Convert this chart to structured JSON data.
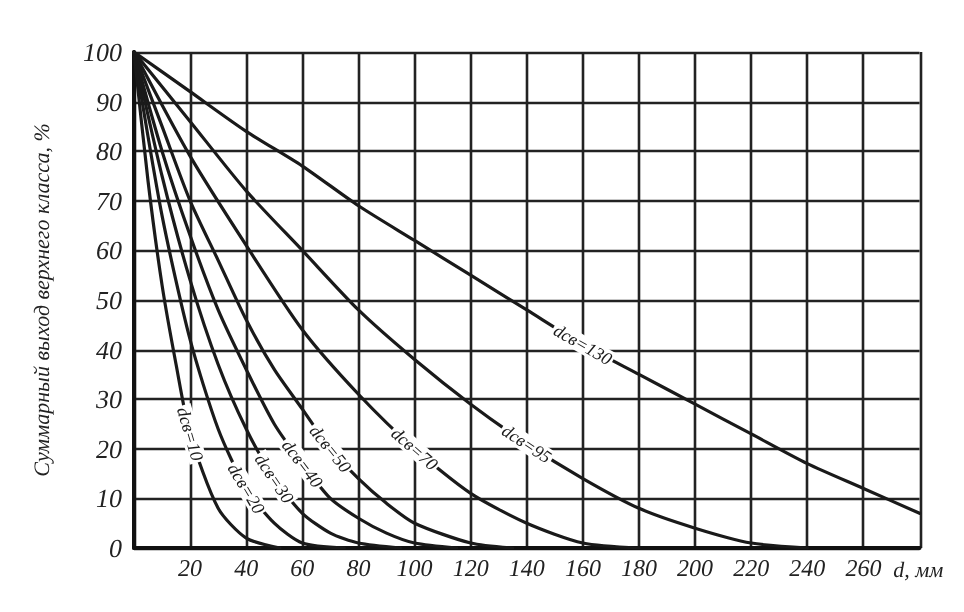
{
  "chart_data": {
    "type": "line",
    "xlabel": "d, мм",
    "ylabel": "Суммарный выход верхнего класса, %",
    "xlim": [
      0,
      280
    ],
    "xticks": [
      {
        "value": 0,
        "label": null
      },
      20,
      40,
      60,
      80,
      100,
      120,
      140,
      160,
      180,
      200,
      220,
      240,
      260,
      {
        "value": 280,
        "label": null
      }
    ],
    "ylim": [
      0,
      100
    ],
    "yticks": [
      0,
      10,
      20,
      30,
      40,
      50,
      60,
      70,
      80,
      90,
      100
    ],
    "grid": true,
    "marker": "none",
    "line_style": "solid",
    "series": [
      {
        "name": "dсв=10",
        "color": "#1a1a1a",
        "x": [
          0,
          5,
          10,
          15,
          20,
          30,
          40,
          52
        ],
        "values": [
          100,
          74,
          53,
          37,
          23,
          8,
          2,
          0
        ]
      },
      {
        "name": "dсв=20",
        "color": "#1a1a1a",
        "x": [
          0,
          10,
          20,
          30,
          40,
          50,
          60,
          75
        ],
        "values": [
          100,
          67,
          42,
          24,
          12,
          5,
          1,
          0
        ]
      },
      {
        "name": "dсв=30",
        "color": "#1a1a1a",
        "x": [
          0,
          10,
          20,
          30,
          40,
          50,
          60,
          70,
          80,
          95
        ],
        "values": [
          100,
          75,
          54,
          37,
          24,
          14,
          7,
          3,
          1,
          0
        ]
      },
      {
        "name": "dсв=40",
        "color": "#1a1a1a",
        "x": [
          0,
          10,
          20,
          30,
          40,
          50,
          60,
          70,
          80,
          90,
          100,
          115
        ],
        "values": [
          100,
          80,
          63,
          48,
          36,
          25,
          17,
          10,
          6,
          3,
          1,
          0
        ]
      },
      {
        "name": "dсв=50",
        "color": "#1a1a1a",
        "x": [
          0,
          10,
          20,
          30,
          40,
          50,
          60,
          70,
          80,
          90,
          100,
          120,
          135
        ],
        "values": [
          100,
          85,
          70,
          58,
          46,
          36,
          28,
          20,
          14,
          9,
          5,
          1,
          0
        ]
      },
      {
        "name": "dсв=70",
        "color": "#1a1a1a",
        "x": [
          0,
          20,
          40,
          60,
          80,
          100,
          120,
          140,
          160,
          180
        ],
        "values": [
          100,
          79,
          61,
          44,
          31,
          20,
          11,
          5,
          1,
          0
        ]
      },
      {
        "name": "dсв=95",
        "color": "#1a1a1a",
        "x": [
          0,
          20,
          40,
          60,
          80,
          100,
          120,
          140,
          160,
          180,
          200,
          220,
          240
        ],
        "values": [
          100,
          86,
          72,
          60,
          48,
          38,
          29,
          21,
          14,
          8,
          4,
          1,
          0
        ]
      },
      {
        "name": "dсв=130",
        "color": "#1a1a1a",
        "x": [
          0,
          20,
          40,
          60,
          80,
          100,
          120,
          140,
          160,
          180,
          200,
          220,
          240,
          260,
          280
        ],
        "values": [
          100,
          92,
          84,
          77,
          69,
          62,
          55,
          48,
          41,
          35,
          29,
          23,
          17,
          12,
          7
        ]
      }
    ]
  }
}
